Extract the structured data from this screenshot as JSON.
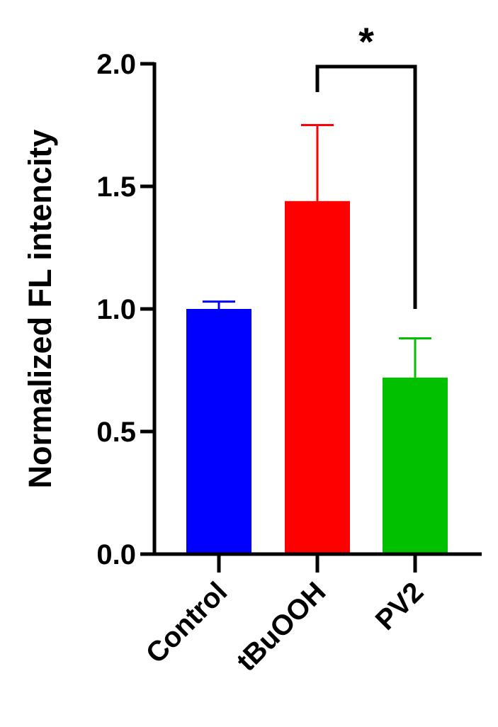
{
  "chart_data": {
    "type": "bar",
    "y_label": "Normalized FL intencity",
    "categories": [
      "Control",
      "tBuOOH",
      "PV2"
    ],
    "values": [
      1.0,
      1.44,
      0.72
    ],
    "errors": [
      0.03,
      0.31,
      0.16
    ],
    "colors": [
      "#0000ff",
      "#ff0000",
      "#00c000"
    ],
    "ylim": [
      0,
      2
    ],
    "yticks": [
      {
        "value": 0,
        "label": "0.0"
      },
      {
        "value": 0.5,
        "label": "0.5"
      },
      {
        "value": 1,
        "label": "1.0"
      },
      {
        "value": 1.5,
        "label": "1.5"
      },
      {
        "value": 2,
        "label": "2.0"
      }
    ],
    "annotations": [
      "*"
    ]
  }
}
